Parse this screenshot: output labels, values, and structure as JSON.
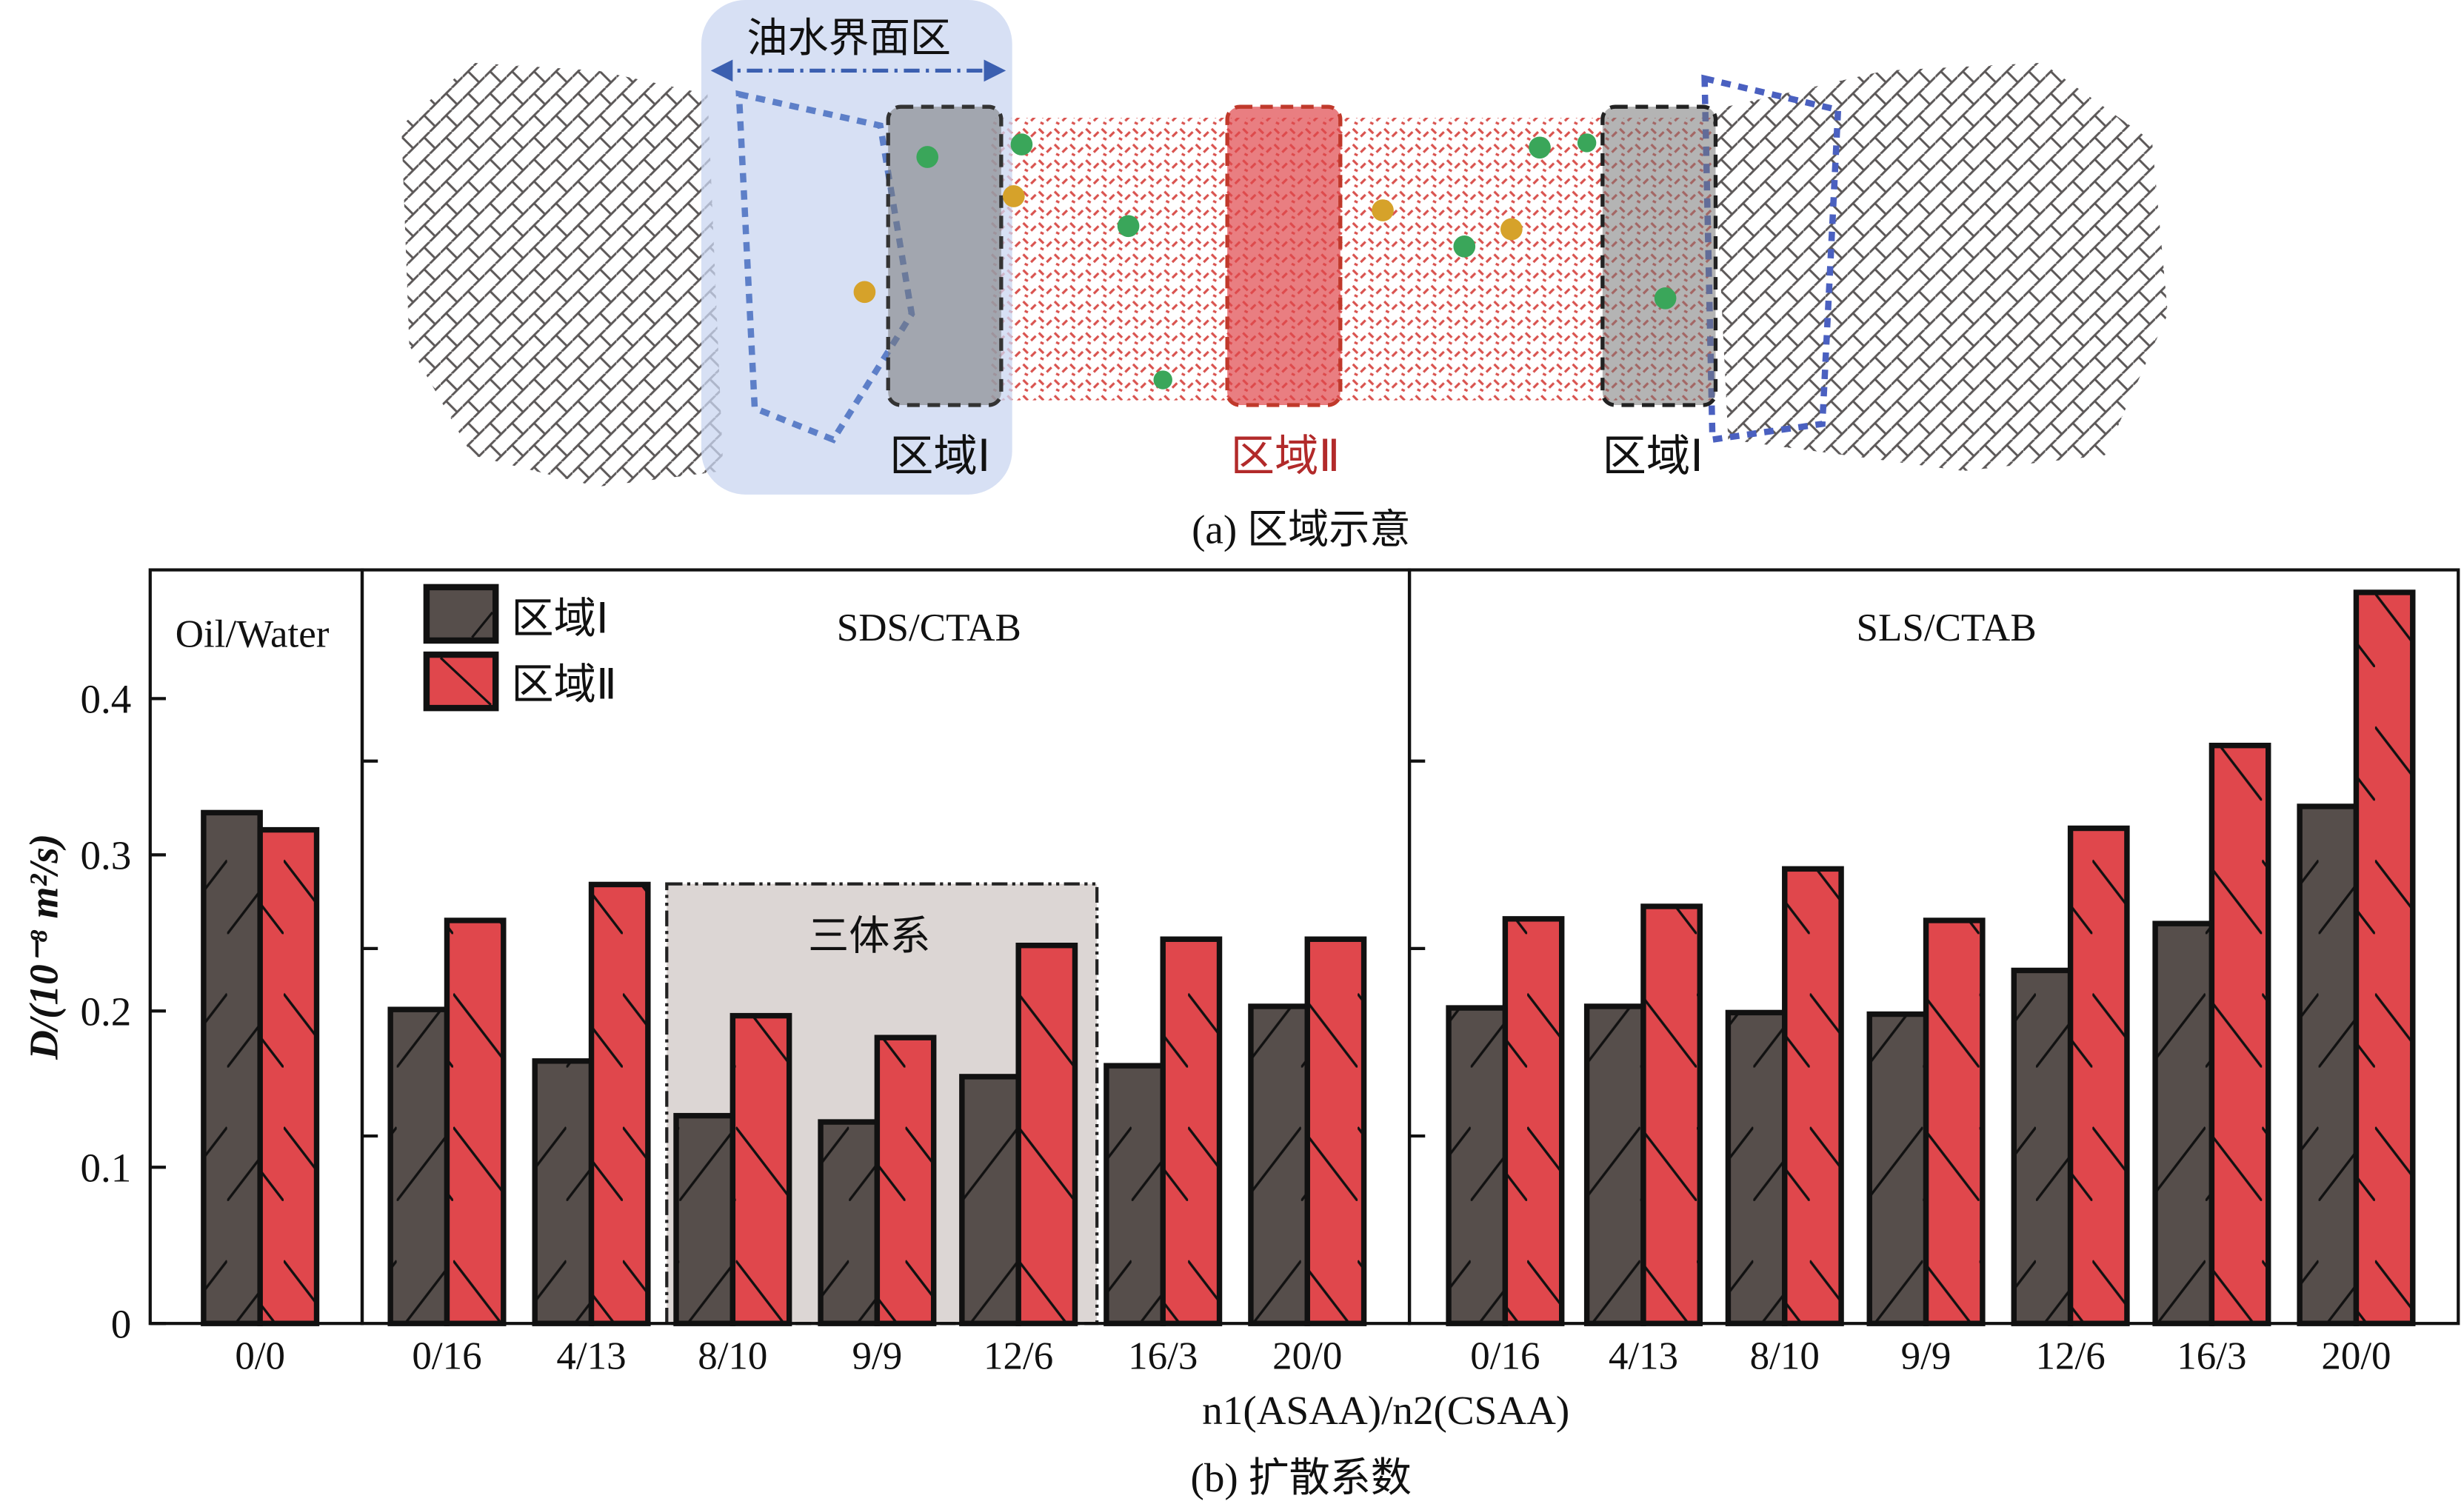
{
  "panel_a": {
    "interface_label": "油水界面区",
    "region1_left_label": "区域Ⅰ",
    "region2_label": "区域Ⅱ",
    "region1_right_label": "区域Ⅰ",
    "caption": "(a) 区域示意",
    "colors": {
      "oil": "#4a4646",
      "water": "#d9534f",
      "interface_bg": "#c9d6f0",
      "region2": "#e0474c",
      "region1": "#777"
    }
  },
  "chart_data": {
    "type": "bar",
    "caption": "(b) 扩散系数",
    "ylabel": "D/(10⁻⁸ m²/s)",
    "xlabel": "n1(ASAA)/n2(CSAA)",
    "ylim": [
      0,
      0.48
    ],
    "yticks": [
      "0",
      "0.1",
      "0.2",
      "0.3",
      "0.4"
    ],
    "ytick_values": [
      0,
      0.1,
      0.2,
      0.3,
      0.4
    ],
    "panel_minor_ticks": [
      0.12,
      0.24,
      0.36
    ],
    "legend": {
      "placement": "top-left",
      "entries": [
        "区域Ⅰ",
        "区域Ⅱ"
      ]
    },
    "colors": {
      "region1": "#564e4b",
      "region2": "#e0474c",
      "highlight_box": "#dcd6d4"
    },
    "highlight_label": "三体系",
    "panels": [
      {
        "title": "Oil/Water",
        "categories": [
          "0/0"
        ],
        "series": [
          {
            "name": "区域Ⅰ",
            "values": [
              0.327
            ]
          },
          {
            "name": "区域Ⅱ",
            "values": [
              0.316
            ]
          }
        ]
      },
      {
        "title": "SDS/CTAB",
        "categories": [
          "0/16",
          "4/13",
          "8/10",
          "9/9",
          "12/6",
          "16/3",
          "20/0"
        ],
        "series": [
          {
            "name": "区域Ⅰ",
            "values": [
              0.201,
              0.168,
              0.133,
              0.129,
              0.158,
              0.165,
              0.203
            ]
          },
          {
            "name": "区域Ⅱ",
            "values": [
              0.258,
              0.281,
              0.197,
              0.183,
              0.242,
              0.246,
              0.246
            ]
          }
        ]
      },
      {
        "title": "SLS/CTAB",
        "categories": [
          "0/16",
          "4/13",
          "8/10",
          "9/9",
          "12/6",
          "16/3",
          "20/0"
        ],
        "series": [
          {
            "name": "区域Ⅰ",
            "values": [
              0.202,
              0.203,
              0.199,
              0.198,
              0.226,
              0.256,
              0.331
            ]
          },
          {
            "name": "区域Ⅱ",
            "values": [
              0.259,
              0.267,
              0.291,
              0.258,
              0.317,
              0.37,
              0.468
            ]
          }
        ]
      }
    ]
  }
}
